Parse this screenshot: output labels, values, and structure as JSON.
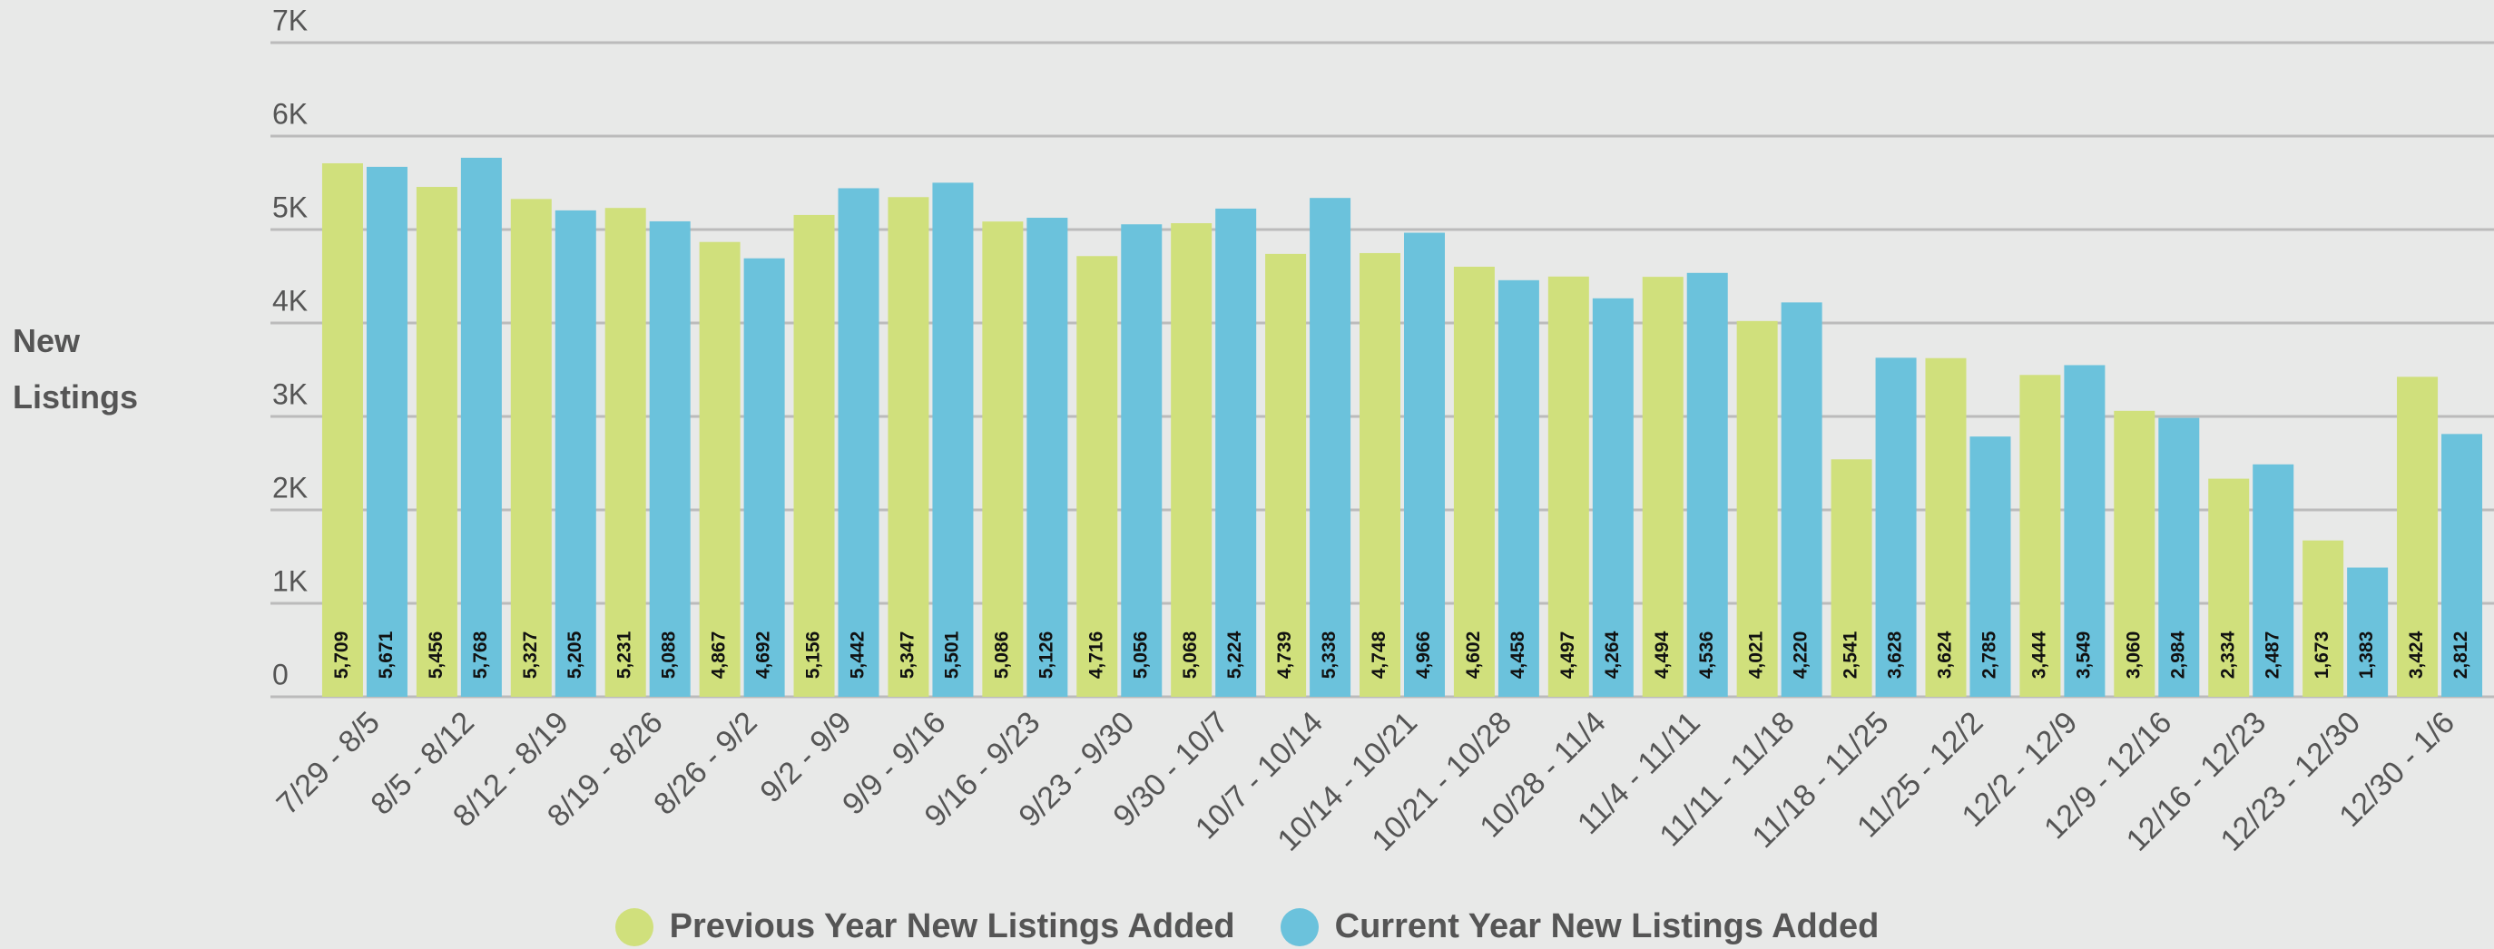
{
  "chart_data": {
    "type": "bar",
    "y_label": "New Listings",
    "categories": [
      "7/29 - 8/5",
      "8/5 - 8/12",
      "8/12 - 8/19",
      "8/19 - 8/26",
      "8/26 - 9/2",
      "9/2 - 9/9",
      "9/9 - 9/16",
      "9/16 - 9/23",
      "9/23 - 9/30",
      "9/30 - 10/7",
      "10/7 - 10/14",
      "10/14 - 10/21",
      "10/21 - 10/28",
      "10/28 - 11/4",
      "11/4 - 11/11",
      "11/11 - 11/18",
      "11/18 - 11/25",
      "11/25 - 12/2",
      "12/2 - 12/9",
      "12/9 - 12/16",
      "12/16 - 12/23",
      "12/23 - 12/30",
      "12/30 - 1/6"
    ],
    "series": [
      {
        "name": "Previous Year New Listings Added",
        "color": "#d0e07c",
        "values": [
          5709,
          5456,
          5327,
          5231,
          4867,
          5156,
          5347,
          5086,
          4716,
          5068,
          4739,
          4748,
          4602,
          4497,
          4494,
          4021,
          2541,
          3624,
          3444,
          3060,
          2334,
          1673,
          3424
        ],
        "value_labels": [
          "5,709",
          "5,456",
          "5,327",
          "5,231",
          "4,867",
          "5,156",
          "5,347",
          "5,086",
          "4,716",
          "5,068",
          "4,739",
          "4,748",
          "4,602",
          "4,497",
          "4,494",
          "4,021",
          "2,541",
          "3,624",
          "3,444",
          "3,060",
          "2,334",
          "1,673",
          "3,424"
        ]
      },
      {
        "name": "Current Year New Listings Added",
        "color": "#6bc2dc",
        "values": [
          5671,
          5768,
          5205,
          5088,
          4692,
          5442,
          5501,
          5126,
          5056,
          5224,
          5338,
          4966,
          4458,
          4264,
          4536,
          4220,
          3628,
          2785,
          3549,
          2984,
          2487,
          1383,
          2812
        ],
        "value_labels": [
          "5,671",
          "5,768",
          "5,205",
          "5,088",
          "4,692",
          "5,442",
          "5,501",
          "5,126",
          "5,056",
          "5,224",
          "5,338",
          "4,966",
          "4,458",
          "4,264",
          "4,536",
          "4,220",
          "3,628",
          "2,785",
          "3,549",
          "2,984",
          "2,487",
          "1,383",
          "2,812"
        ]
      }
    ],
    "ylim": [
      0,
      7000
    ],
    "yticks": [
      0,
      {
        "value": 1000,
        "label": "1K"
      },
      {
        "value": 2000,
        "label": "2K"
      },
      {
        "value": 3000,
        "label": "3K"
      },
      {
        "value": 4000,
        "label": "4K"
      },
      {
        "value": 5000,
        "label": "5K"
      },
      {
        "value": 6000,
        "label": "6K"
      },
      {
        "value": 7000,
        "label": "7K"
      }
    ],
    "grid": true
  }
}
